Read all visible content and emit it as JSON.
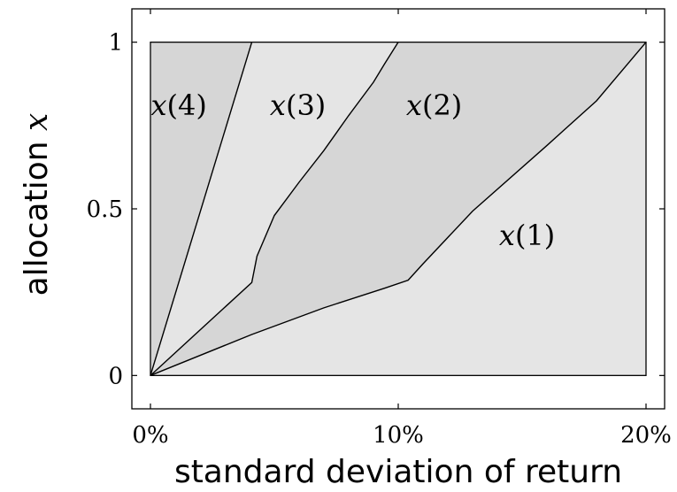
{
  "chart_data": {
    "type": "area",
    "xlabel": "standard deviation of return",
    "ylabel": "allocation x",
    "xlim": [
      -0.0075,
      0.2075
    ],
    "ylim": [
      -0.1,
      1.1
    ],
    "x_domain": [
      0,
      0.2
    ],
    "y_domain": [
      0,
      1
    ],
    "xticks": [
      {
        "value": 0.0,
        "label": "0%"
      },
      {
        "value": 0.1,
        "label": "10%"
      },
      {
        "value": 0.2,
        "label": "20%"
      }
    ],
    "yticks": [
      {
        "value": 0,
        "label": "0"
      },
      {
        "value": 0.5,
        "label": "0.5"
      },
      {
        "value": 1,
        "label": "1"
      }
    ],
    "boundaries": [
      {
        "points": [
          [
            0,
            0
          ],
          [
            0.0409,
            0.123
          ],
          [
            0.07,
            0.203
          ],
          [
            0.0945,
            0.262
          ],
          [
            0.104,
            0.286
          ],
          [
            0.11,
            0.335
          ],
          [
            0.13,
            0.493
          ],
          [
            0.16,
            0.69
          ],
          [
            0.18,
            0.824
          ],
          [
            0.2,
            1.0
          ]
        ]
      },
      {
        "points": [
          [
            0,
            0
          ],
          [
            0.0409,
            0.279
          ],
          [
            0.043,
            0.358
          ],
          [
            0.05,
            0.48
          ],
          [
            0.06,
            0.58
          ],
          [
            0.07,
            0.675
          ],
          [
            0.08,
            0.78
          ],
          [
            0.09,
            0.88
          ],
          [
            0.0945,
            0.935
          ],
          [
            0.1,
            1.0
          ]
        ]
      },
      {
        "points": [
          [
            0,
            0
          ],
          [
            0.0409,
            1.0
          ]
        ]
      }
    ],
    "regions": [
      {
        "name": "x(1)",
        "label_at": [
          0.152,
          0.42
        ],
        "fill": "#e5e5e5"
      },
      {
        "name": "x(2)",
        "label_at": [
          0.1145,
          0.81
        ],
        "fill": "#d6d6d6"
      },
      {
        "name": "x(3)",
        "label_at": [
          0.0595,
          0.81
        ],
        "fill": "#e5e5e5"
      },
      {
        "name": "x(4)",
        "label_at": [
          0.0115,
          0.81
        ],
        "fill": "#d6d6d6"
      }
    ],
    "grid": false,
    "legend": "none"
  }
}
